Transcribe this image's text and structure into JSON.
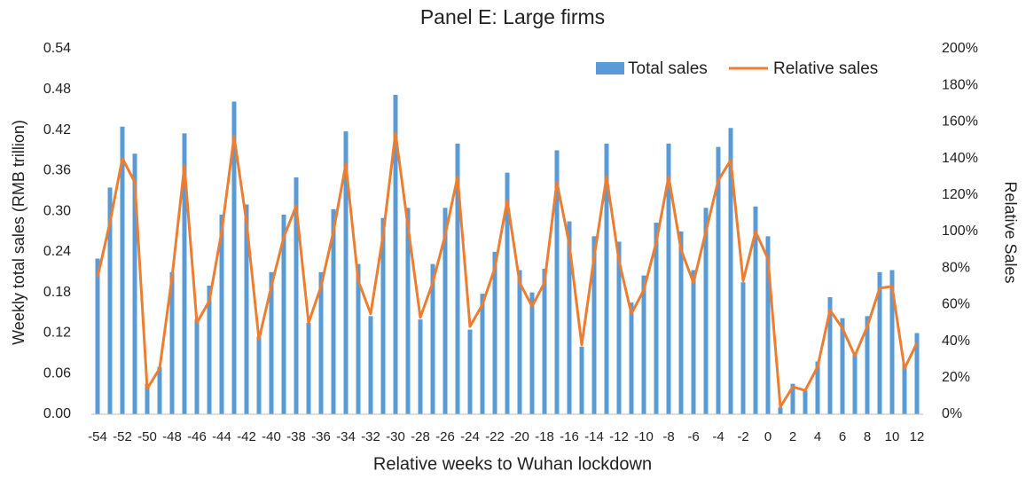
{
  "chart_data": {
    "type": "bar-line",
    "title": "Panel E: Large firms",
    "x_label": "Relative weeks to Wuhan lockdown",
    "y_label": "Weekly total sales (RMB trillion)",
    "y2_label": "Relative Sales",
    "categories": [
      -54,
      null,
      -52,
      null,
      -50,
      null,
      -48,
      null,
      -46,
      null,
      -44,
      null,
      -42,
      null,
      -40,
      null,
      -38,
      null,
      -36,
      null,
      -34,
      null,
      -32,
      null,
      -30,
      null,
      -28,
      null,
      -26,
      null,
      -24,
      null,
      -22,
      null,
      -20,
      null,
      -18,
      null,
      -16,
      null,
      -14,
      null,
      -12,
      null,
      -10,
      null,
      -8,
      null,
      -6,
      null,
      -4,
      null,
      -2,
      null,
      0,
      null,
      2,
      null,
      4,
      null,
      6,
      null,
      8,
      null,
      10,
      null,
      12
    ],
    "series": [
      {
        "name": "Total sales",
        "color": "#5b9bd5",
        "kind": "bar",
        "values": [
          0.23,
          0.335,
          0.425,
          0.385,
          0.045,
          0.07,
          0.21,
          0.415,
          0.14,
          0.19,
          0.295,
          0.462,
          0.31,
          0.115,
          0.21,
          0.295,
          0.35,
          0.135,
          0.21,
          0.303,
          0.418,
          0.222,
          0.145,
          0.29,
          0.472,
          0.305,
          0.14,
          0.222,
          0.305,
          0.4,
          0.125,
          0.178,
          0.24,
          0.357,
          0.213,
          0.18,
          0.215,
          0.39,
          0.285,
          0.1,
          0.263,
          0.4,
          0.255,
          0.165,
          0.205,
          0.283,
          0.4,
          0.27,
          0.213,
          0.305,
          0.395,
          0.423,
          0.195,
          0.307,
          0.263,
          0.01,
          0.045,
          0.035,
          0.078,
          0.173,
          0.142,
          0.09,
          0.145,
          0.21,
          0.213,
          0.075,
          0.12
        ]
      },
      {
        "name": "Relative sales",
        "color": "#ed7d31",
        "kind": "line",
        "axis": "y2",
        "values": [
          75,
          105,
          140,
          127,
          14,
          25,
          75,
          136,
          50,
          62,
          100,
          152,
          105,
          41,
          70,
          97,
          114,
          50,
          70,
          100,
          137,
          73,
          55,
          98,
          154,
          103,
          53,
          72,
          98,
          130,
          48,
          60,
          80,
          117,
          72,
          59,
          72,
          127,
          93,
          38,
          86,
          130,
          84,
          55,
          68,
          94,
          130,
          90,
          72,
          100,
          128,
          139,
          73,
          100,
          85,
          4,
          15,
          13,
          26,
          57,
          47,
          32,
          48,
          69,
          70,
          25,
          39
        ]
      }
    ],
    "ylim": [
      0,
      0.54
    ],
    "yticks": [
      {
        "value": 0,
        "label": "0.00"
      },
      0.06,
      0.12,
      0.18,
      0.24,
      {
        "value": 0.3,
        "label": "0.30"
      },
      0.36,
      0.42,
      0.48,
      0.54
    ],
    "y2lim": [
      0,
      200
    ],
    "y2ticks": [
      {
        "value": 0,
        "label": "0%"
      },
      {
        "value": 20,
        "label": "20%"
      },
      {
        "value": 40,
        "label": "40%"
      },
      {
        "value": 60,
        "label": "60%"
      },
      {
        "value": 80,
        "label": "80%"
      },
      {
        "value": 100,
        "label": "100%"
      },
      {
        "value": 120,
        "label": "120%"
      },
      {
        "value": 140,
        "label": "140%"
      },
      {
        "value": 160,
        "label": "160%"
      },
      {
        "value": 180,
        "label": "180%"
      },
      {
        "value": 200,
        "label": "200%"
      }
    ],
    "grid": false,
    "legend": "top-right"
  }
}
